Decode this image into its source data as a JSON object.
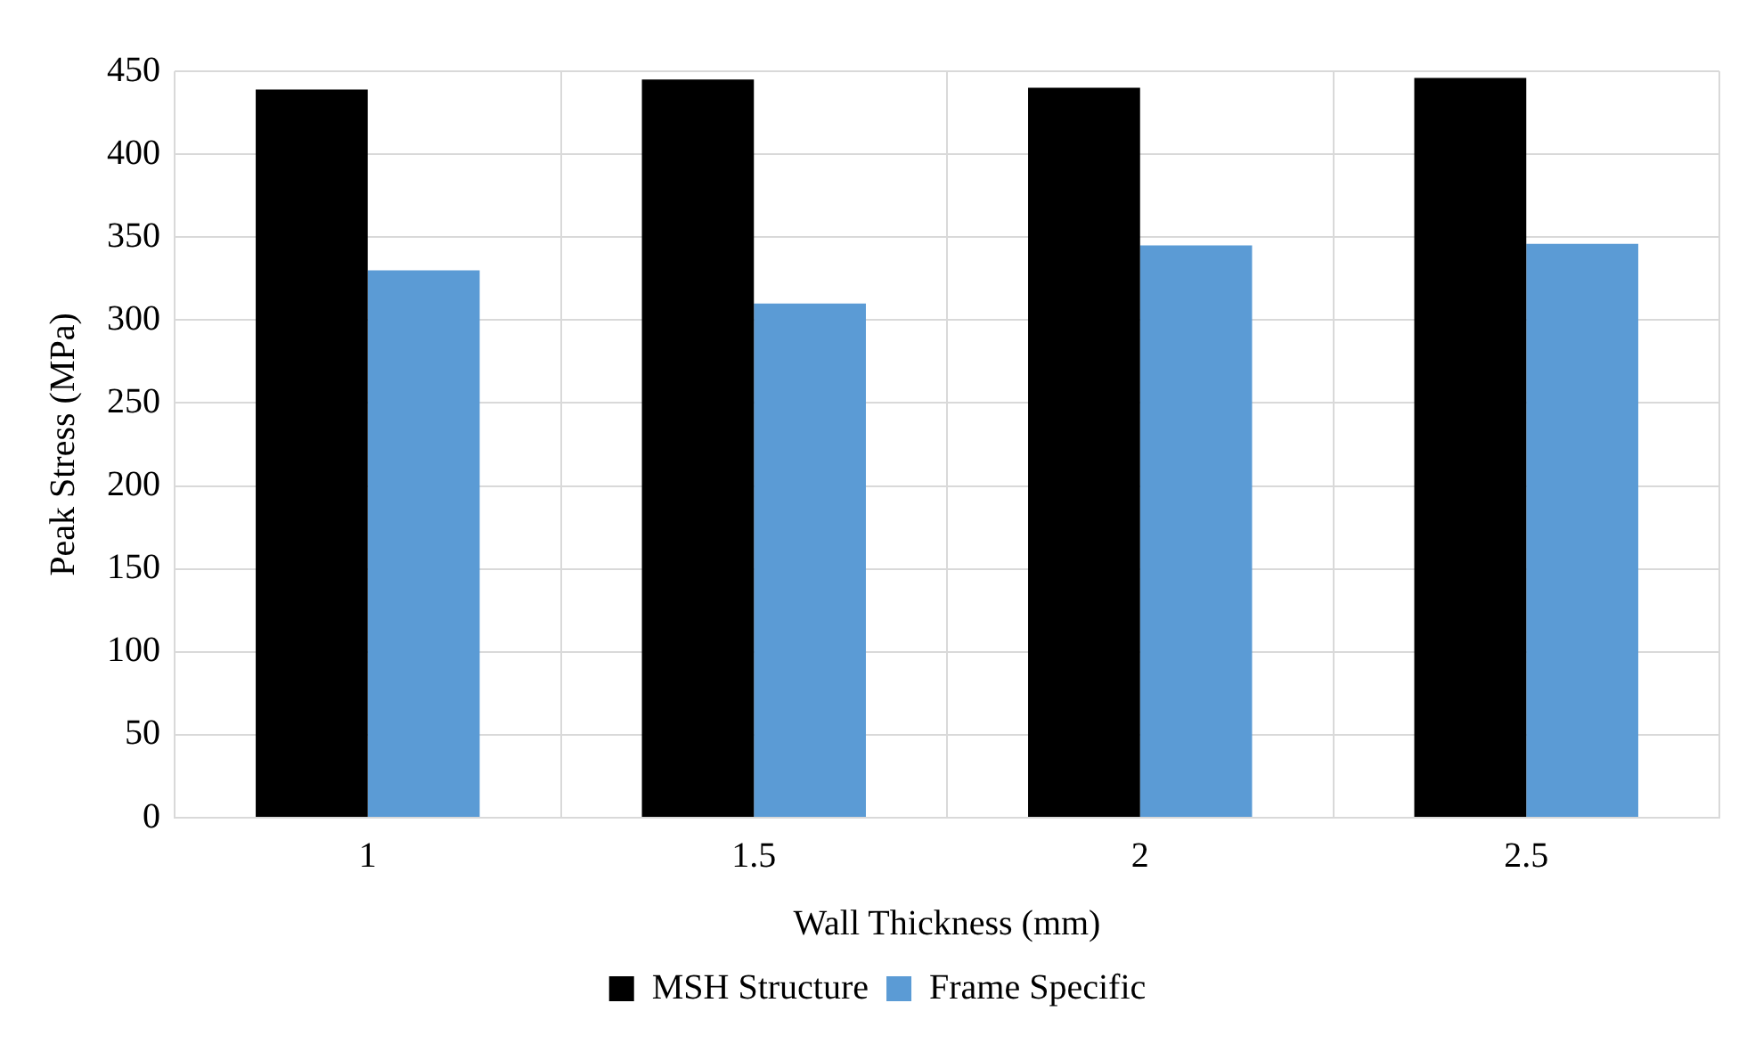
{
  "chart_data": {
    "type": "bar",
    "xlabel": "Wall Thickness (mm)",
    "ylabel": "Peak Stress (MPa)",
    "categories": [
      "1",
      "1.5",
      "2",
      "2.5"
    ],
    "series": [
      {
        "name": "MSH Structure",
        "color": "#000000",
        "values": [
          439,
          445,
          440,
          446
        ]
      },
      {
        "name": "Frame Specific",
        "color": "#5b9bd5",
        "values": [
          330,
          310,
          345,
          346
        ]
      }
    ],
    "ylim": [
      0,
      450
    ],
    "yticks": [
      0,
      50,
      100,
      150,
      200,
      250,
      300,
      350,
      400,
      450
    ],
    "grid": true,
    "legend": "bottom"
  }
}
